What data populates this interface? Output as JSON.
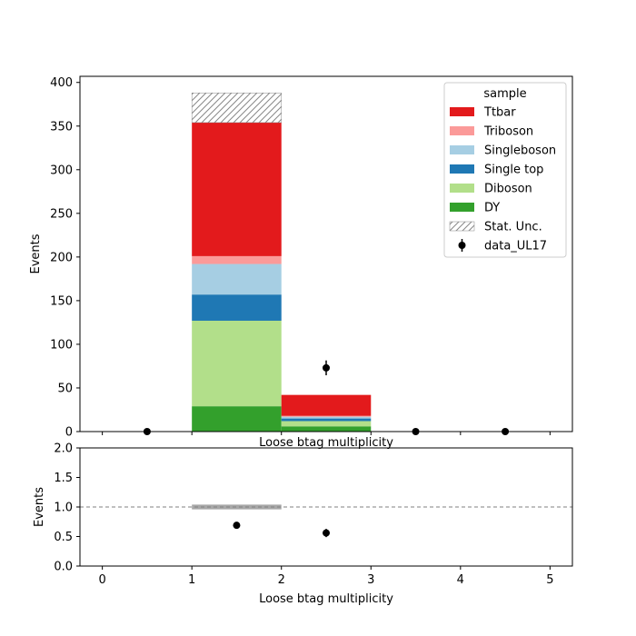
{
  "chart_data": [
    {
      "type": "bar",
      "stacked": true,
      "xlabel": "Loose btag multiplicity",
      "ylabel": "Events",
      "xlim": [
        -0.25,
        5.25
      ],
      "ylim": [
        0,
        407
      ],
      "x_ticks": [
        "",
        "",
        "",
        "",
        "",
        ""
      ],
      "y_ticks": [
        "0",
        "50",
        "100",
        "150",
        "200",
        "250",
        "300",
        "350",
        "400"
      ],
      "bins": [
        [
          1,
          2
        ],
        [
          2,
          3
        ]
      ],
      "series": [
        {
          "name": "DY",
          "color": "#33a02c",
          "values": [
            29,
            6
          ]
        },
        {
          "name": "Diboson",
          "color": "#b2df8a",
          "values": [
            98,
            6
          ]
        },
        {
          "name": "Single top",
          "color": "#1f78b4",
          "values": [
            30,
            3
          ]
        },
        {
          "name": "Singleboson",
          "color": "#a6cee3",
          "values": [
            35,
            2
          ]
        },
        {
          "name": "Triboson",
          "color": "#fb9a99",
          "values": [
            9,
            1
          ]
        },
        {
          "name": "Ttbar",
          "color": "#e31a1c",
          "values": [
            153,
            24
          ]
        }
      ],
      "stat_unc": {
        "label": "Stat. Unc.",
        "low": [
          354,
          42
        ],
        "high": [
          388,
          42
        ]
      },
      "data_points": {
        "name": "data_UL17",
        "x": [
          0.5,
          2.5,
          3.5,
          4.5
        ],
        "y": [
          0,
          73,
          0,
          0
        ],
        "yerr": [
          0,
          8.5,
          0,
          0
        ]
      },
      "legend": {
        "title": "sample",
        "placement": "top-right",
        "entries": [
          "Ttbar",
          "Triboson",
          "Singleboson",
          "Single top",
          "Diboson",
          "DY",
          "Stat. Unc.",
          "data_UL17"
        ]
      }
    },
    {
      "type": "scatter",
      "xlabel": "Loose btag multiplicity",
      "ylabel": "Events",
      "xlim": [
        -0.25,
        5.25
      ],
      "ylim": [
        0,
        2
      ],
      "x_ticks": [
        "0",
        "1",
        "2",
        "3",
        "4",
        "5"
      ],
      "y_ticks": [
        "0.0",
        "0.5",
        "1.0",
        "1.5",
        "2.0"
      ],
      "reference_line": 1.0,
      "unc_band": {
        "x": [
          1,
          2
        ],
        "low": 0.96,
        "high": 1.04
      },
      "ratio_points": {
        "x": [
          1.5,
          2.5
        ],
        "y": [
          0.69,
          0.56
        ],
        "yerr": [
          0.03,
          0.07
        ]
      }
    }
  ]
}
